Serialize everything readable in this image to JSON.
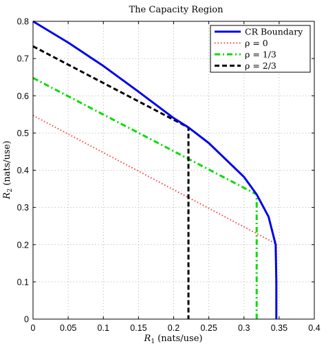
{
  "chart_data": {
    "type": "line",
    "title": "The Capacity Region",
    "xlabel": {
      "sym": "R",
      "sub": "1",
      "rest": " (nats/use)"
    },
    "ylabel": {
      "sym": "R",
      "sub": "2",
      "rest": " (nats/use)"
    },
    "xlim": [
      0,
      0.4
    ],
    "ylim": [
      0,
      0.8
    ],
    "xticks": [
      0,
      0.05,
      0.1,
      0.15,
      0.2,
      0.25,
      0.3,
      0.35,
      0.4
    ],
    "xtick_labels": [
      "0",
      "0.05",
      "0.1",
      "0.15",
      "0.2",
      "0.25",
      "0.3",
      "0.35",
      "0.4"
    ],
    "yticks": [
      0,
      0.1,
      0.2,
      0.3,
      0.4,
      0.5,
      0.6,
      0.7,
      0.8
    ],
    "ytick_labels": [
      "0",
      "0.1",
      "0.2",
      "0.3",
      "0.4",
      "0.5",
      "0.6",
      "0.7",
      "0.8"
    ],
    "grid": true,
    "legend_position": "top-right",
    "series": [
      {
        "name": "CR Boundary",
        "color": "#0000ee",
        "style": "solid",
        "x": [
          0,
          0.05,
          0.1,
          0.15,
          0.2,
          0.221,
          0.25,
          0.3,
          0.318,
          0.335,
          0.345,
          0.346,
          0.346
        ],
        "y": [
          0.8,
          0.743,
          0.68,
          0.611,
          0.54,
          0.515,
          0.473,
          0.382,
          0.335,
          0.275,
          0.2,
          0.1,
          0
        ]
      },
      {
        "name": "ρ = 0",
        "color": "#ff3a3a",
        "style": "dotted",
        "x": [
          0,
          0.346,
          0.346
        ],
        "y": [
          0.547,
          0.202,
          0
        ]
      },
      {
        "name": "ρ = 1/3",
        "color": "#00dd00",
        "style": "dashdot",
        "x": [
          0,
          0.318,
          0.318
        ],
        "y": [
          0.648,
          0.335,
          0
        ]
      },
      {
        "name": "ρ = 2/3",
        "color": "#000000",
        "style": "dashed",
        "x": [
          0,
          0.221,
          0.221
        ],
        "y": [
          0.733,
          0.515,
          0
        ]
      }
    ]
  }
}
